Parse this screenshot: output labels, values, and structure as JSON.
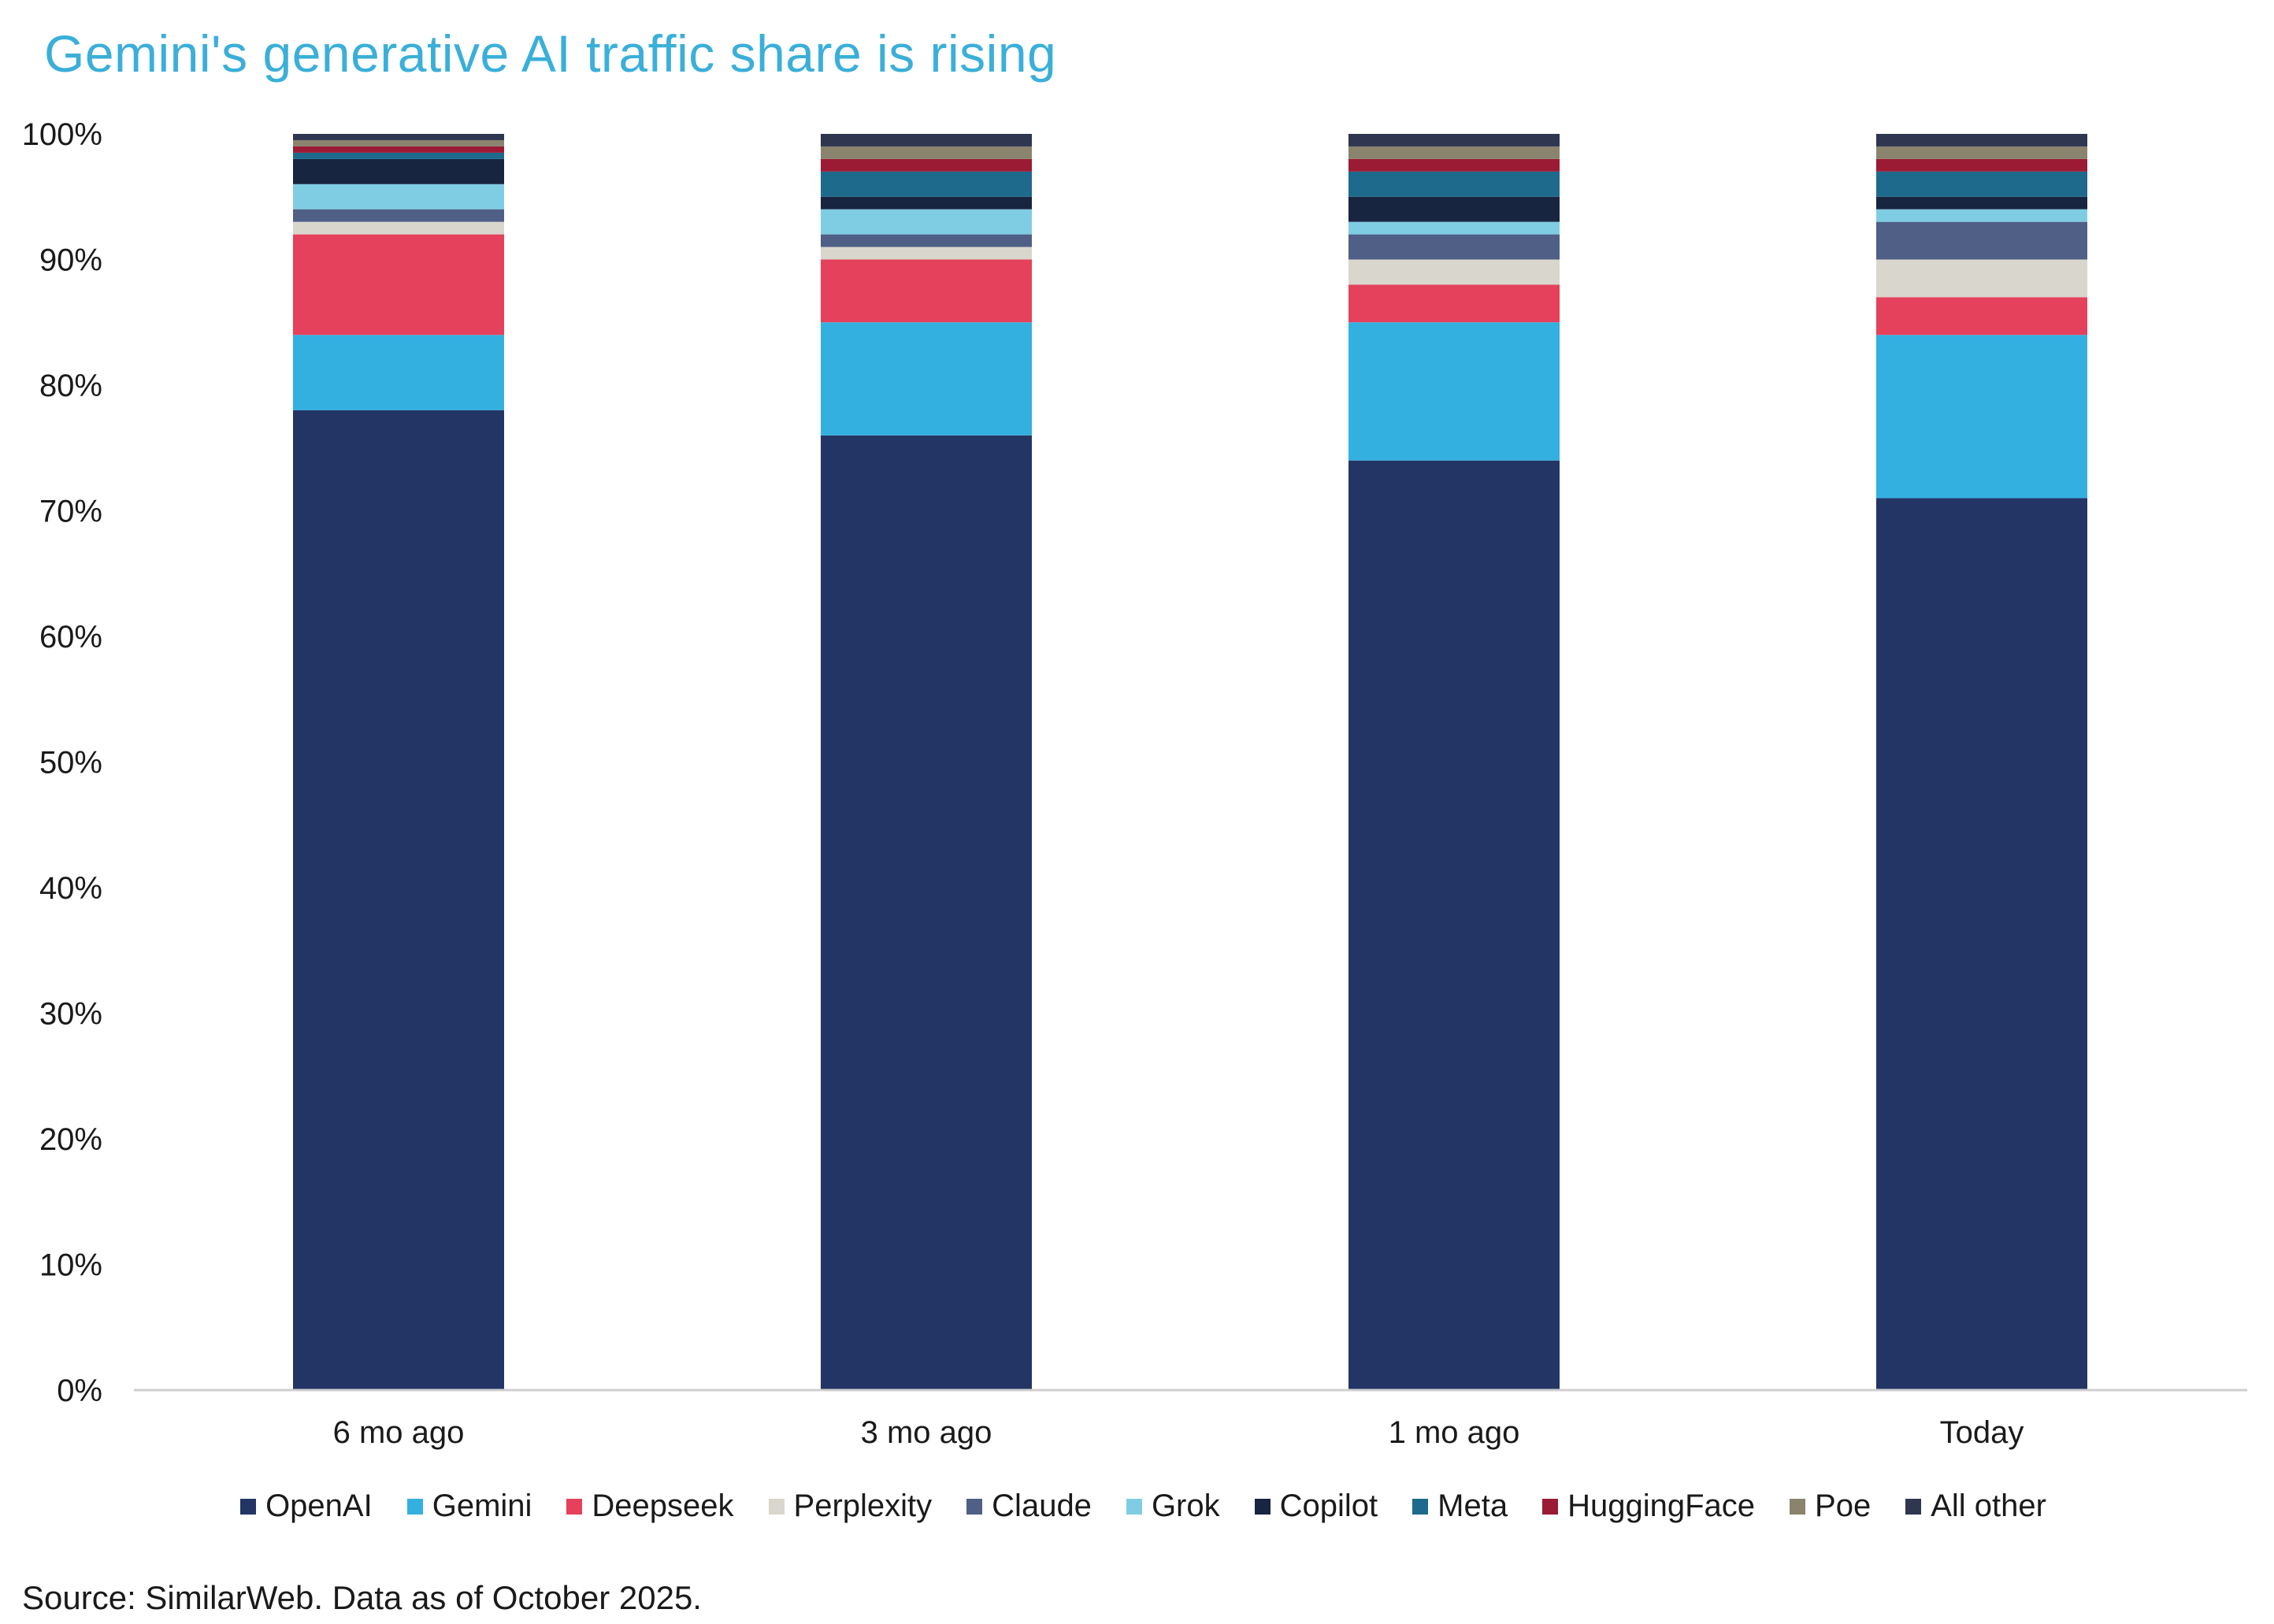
{
  "title": "Gemini's generative AI traffic share is rising",
  "source": "Source: SimilarWeb. Data as of October 2025.",
  "chart_data": {
    "type": "bar",
    "stacked": true,
    "categories": [
      "6 mo ago",
      "3 mo ago",
      "1 mo ago",
      "Today"
    ],
    "ylim": [
      0,
      100
    ],
    "yticks": [
      "0%",
      "10%",
      "20%",
      "30%",
      "40%",
      "50%",
      "60%",
      "70%",
      "80%",
      "90%",
      "100%"
    ],
    "grid": false,
    "legend_position": "bottom",
    "series": [
      {
        "name": "OpenAI",
        "color": "#233565",
        "values": [
          78,
          76,
          74,
          71
        ]
      },
      {
        "name": "Gemini",
        "color": "#33b0e0",
        "values": [
          6,
          9,
          11,
          13
        ]
      },
      {
        "name": "Deepseek",
        "color": "#e5415c",
        "values": [
          8,
          5,
          3,
          3
        ]
      },
      {
        "name": "Perplexity",
        "color": "#d9d6cd",
        "values": [
          1,
          1,
          2,
          3
        ]
      },
      {
        "name": "Claude",
        "color": "#4f5f86",
        "values": [
          1,
          1,
          2,
          3
        ]
      },
      {
        "name": "Grok",
        "color": "#7fcde3",
        "values": [
          2,
          2,
          1,
          1
        ]
      },
      {
        "name": "Copilot",
        "color": "#182541",
        "values": [
          2,
          1,
          2,
          1
        ]
      },
      {
        "name": "Meta",
        "color": "#1d6a8c",
        "values": [
          0.5,
          2,
          2,
          2
        ]
      },
      {
        "name": "HuggingFace",
        "color": "#9b1b34",
        "values": [
          0.5,
          1,
          1,
          1
        ]
      },
      {
        "name": "Poe",
        "color": "#8a846e",
        "values": [
          0.5,
          1,
          1,
          1
        ]
      },
      {
        "name": "All other",
        "color": "#2e3650",
        "values": [
          0.5,
          1,
          1,
          1
        ]
      }
    ]
  }
}
